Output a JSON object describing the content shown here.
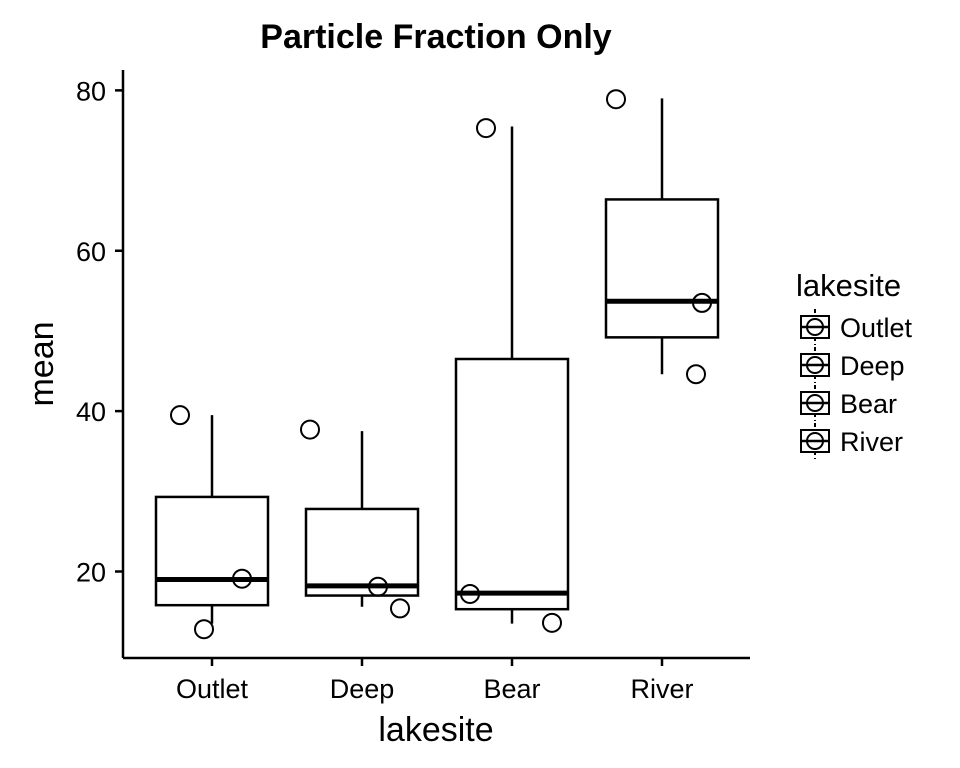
{
  "chart_data": {
    "type": "boxplot",
    "title": "Particle Fraction Only",
    "xlabel": "lakesite",
    "ylabel": "mean",
    "ylim": [
      9.5,
      83
    ],
    "yticks": [
      20,
      40,
      60,
      80
    ],
    "categories": [
      "Outlet",
      "Deep",
      "Bear",
      "River"
    ],
    "boxes": [
      {
        "name": "Outlet",
        "whisker_low": 13.5,
        "q1": 15.8,
        "median": 19.0,
        "q3": 29.3,
        "whisker_high": 39.5,
        "points": [
          39.5,
          19.1,
          12.8
        ]
      },
      {
        "name": "Deep",
        "whisker_low": 15.6,
        "q1": 17.0,
        "median": 18.2,
        "q3": 27.8,
        "whisker_high": 37.5,
        "points": [
          37.7,
          18.1,
          15.4
        ]
      },
      {
        "name": "Bear",
        "whisker_low": 13.5,
        "q1": 15.3,
        "median": 17.3,
        "q3": 46.5,
        "whisker_high": 75.5,
        "points": [
          75.3,
          17.2,
          13.6
        ]
      },
      {
        "name": "River",
        "whisker_low": 44.6,
        "q1": 49.2,
        "median": 53.7,
        "q3": 66.4,
        "whisker_high": 79.0,
        "points": [
          78.9,
          53.5,
          44.6
        ]
      }
    ],
    "legend": {
      "title": "lakesite",
      "position": "right",
      "entries": [
        "Outlet",
        "Deep",
        "Bear",
        "River"
      ]
    },
    "grid": false
  }
}
